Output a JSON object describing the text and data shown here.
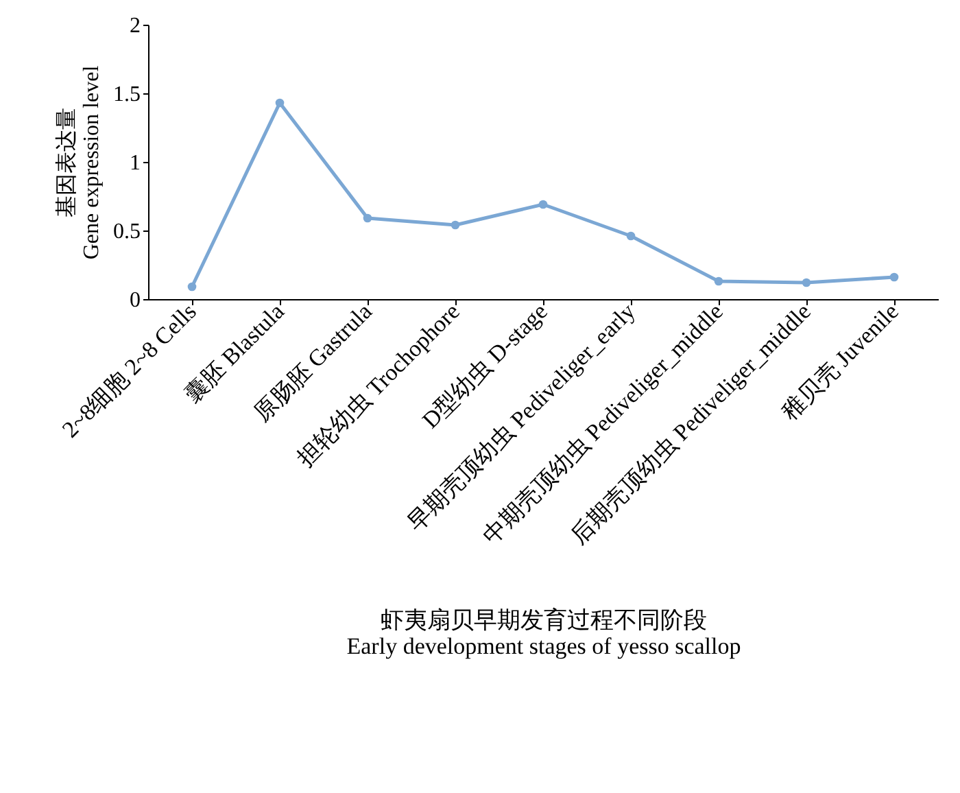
{
  "chart_data": {
    "type": "line",
    "xlabel": "虾夷扇贝早期发育过程不同阶段\nEarly development stages of yesso scallop",
    "ylabel": "基因表达量\nGene expression level",
    "categories": [
      "2~8细胞 2~8 Cells",
      "囊胚 Blastula",
      "原肠胚 Gastrula",
      "担轮幼虫 Trochophore",
      "D型幼虫 D-stage",
      "早期壳顶幼虫 Pediveliger_early",
      "中期壳顶幼虫 Pediveliger_middle",
      "后期壳顶幼虫 Pediveliger_middle",
      "稚贝壳 Juvenile"
    ],
    "series": [
      {
        "color": "#7ba7d4",
        "values": [
          0.09,
          1.43,
          0.59,
          0.54,
          0.69,
          0.46,
          0.13,
          0.12,
          0.16
        ]
      }
    ],
    "ylim": [
      0,
      2
    ],
    "yticks": [
      0,
      0.5,
      1,
      1.5,
      2
    ],
    "grid": false,
    "marker": "circle",
    "line_style": "solid"
  }
}
